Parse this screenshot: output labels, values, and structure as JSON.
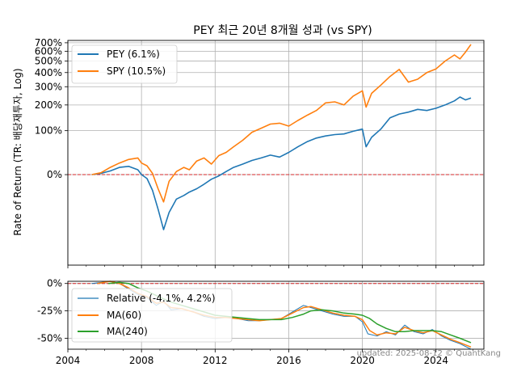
{
  "chart_data": [
    {
      "type": "line",
      "title": "PEY 최근 20년 8개월 성과 (vs SPY)",
      "ylabel": "Rate of Return (TR: 배당재투자, Log)",
      "yscale": "log(1+r)",
      "ylim": [
        -0.76,
        7.3
      ],
      "xlim": [
        2004.0,
        2026.6
      ],
      "yticks": [
        {
          "value": 0.0,
          "label": "0%"
        },
        {
          "value": 1.0,
          "label": "100%"
        },
        {
          "value": 2.0,
          "label": "200%"
        },
        {
          "value": 3.0,
          "label": "300%"
        },
        {
          "value": 4.0,
          "label": "400%"
        },
        {
          "value": 5.0,
          "label": "500%"
        },
        {
          "value": 6.0,
          "label": "600%"
        },
        {
          "value": 7.0,
          "label": "700%"
        }
      ],
      "grid": true,
      "reference_line": {
        "value": 0.0,
        "color": "#d62728",
        "style": "dashed"
      },
      "legend": {
        "position": "top-left",
        "entries": [
          "PEY (6.1%)",
          "SPY (10.5%)"
        ]
      },
      "series": [
        {
          "name": "PEY",
          "label": "PEY (6.1%)",
          "color": "#1f77b4",
          "x": [
            2005.3,
            2005.8,
            2006.3,
            2006.8,
            2007.3,
            2007.8,
            2008.0,
            2008.3,
            2008.6,
            2008.9,
            2009.2,
            2009.5,
            2009.9,
            2010.3,
            2010.6,
            2011.0,
            2011.4,
            2011.8,
            2012.2,
            2012.6,
            2013.0,
            2013.5,
            2014.0,
            2014.5,
            2015.0,
            2015.5,
            2016.0,
            2016.5,
            2017.0,
            2017.5,
            2018.0,
            2018.5,
            2019.0,
            2019.5,
            2020.0,
            2020.2,
            2020.5,
            2021.0,
            2021.5,
            2022.0,
            2022.5,
            2023.0,
            2023.5,
            2024.0,
            2024.5,
            2025.0,
            2025.3,
            2025.6,
            2025.9
          ],
          "values": [
            0.0,
            0.02,
            0.06,
            0.12,
            0.14,
            0.08,
            0.0,
            -0.06,
            -0.22,
            -0.42,
            -0.58,
            -0.45,
            -0.32,
            -0.28,
            -0.24,
            -0.2,
            -0.14,
            -0.07,
            -0.02,
            0.05,
            0.12,
            0.18,
            0.25,
            0.3,
            0.36,
            0.32,
            0.42,
            0.55,
            0.68,
            0.78,
            0.84,
            0.88,
            0.9,
            0.98,
            1.05,
            0.55,
            0.8,
            1.05,
            1.45,
            1.6,
            1.68,
            1.8,
            1.75,
            1.85,
            2.0,
            2.2,
            2.4,
            2.25,
            2.35
          ]
        },
        {
          "name": "SPY",
          "label": "SPY (10.5%)",
          "color": "#ff7f0e",
          "x": [
            2005.3,
            2005.8,
            2006.3,
            2006.8,
            2007.3,
            2007.8,
            2008.0,
            2008.3,
            2008.6,
            2008.9,
            2009.2,
            2009.5,
            2009.9,
            2010.3,
            2010.6,
            2011.0,
            2011.4,
            2011.8,
            2012.2,
            2012.6,
            2013.0,
            2013.5,
            2014.0,
            2014.5,
            2015.0,
            2015.5,
            2016.0,
            2016.5,
            2017.0,
            2017.5,
            2018.0,
            2018.5,
            2019.0,
            2019.5,
            2020.0,
            2020.2,
            2020.5,
            2021.0,
            2021.5,
            2022.0,
            2022.5,
            2023.0,
            2023.5,
            2024.0,
            2024.5,
            2025.0,
            2025.3,
            2025.6,
            2025.9
          ],
          "values": [
            0.0,
            0.03,
            0.12,
            0.2,
            0.27,
            0.3,
            0.2,
            0.15,
            0.02,
            -0.2,
            -0.35,
            -0.1,
            0.05,
            0.12,
            0.08,
            0.24,
            0.3,
            0.18,
            0.35,
            0.42,
            0.55,
            0.72,
            0.95,
            1.08,
            1.22,
            1.25,
            1.15,
            1.35,
            1.55,
            1.75,
            2.1,
            2.15,
            2.0,
            2.45,
            2.75,
            1.9,
            2.6,
            3.1,
            3.7,
            4.25,
            3.3,
            3.5,
            4.0,
            4.3,
            5.0,
            5.6,
            5.2,
            5.9,
            6.8
          ]
        }
      ]
    },
    {
      "type": "line",
      "ylabel": "",
      "ylim": [
        -0.6,
        0.02
      ],
      "xlim": [
        2004.0,
        2026.6
      ],
      "yticks": [
        {
          "value": 0.0,
          "label": "0%"
        },
        {
          "value": -0.25,
          "label": "-25%"
        },
        {
          "value": -0.5,
          "label": "-50%"
        }
      ],
      "xticks": [
        {
          "value": 2004,
          "label": "2004"
        },
        {
          "value": 2008,
          "label": "2008"
        },
        {
          "value": 2012,
          "label": "2012"
        },
        {
          "value": 2016,
          "label": "2016"
        },
        {
          "value": 2020,
          "label": "2020"
        },
        {
          "value": 2024,
          "label": "2024"
        }
      ],
      "grid": true,
      "reference_line": {
        "value": 0.0,
        "color": "#d62728",
        "style": "dashed"
      },
      "legend": {
        "position": "top-left",
        "entries": [
          "Relative (-4.1%, 4.2%)",
          "MA(60)",
          "MA(240)"
        ]
      },
      "series": [
        {
          "name": "Relative",
          "label": "Relative (-4.1%, 4.2%)",
          "color": "#1f77b4",
          "x": [
            2005.3,
            2005.8,
            2006.3,
            2006.8,
            2007.3,
            2007.8,
            2008.3,
            2008.8,
            2009.2,
            2009.6,
            2010.2,
            2010.8,
            2011.4,
            2012.0,
            2012.6,
            2013.2,
            2013.8,
            2014.4,
            2015.0,
            2015.6,
            2016.2,
            2016.8,
            2017.2,
            2017.8,
            2018.4,
            2019.0,
            2019.6,
            2020.0,
            2020.3,
            2020.8,
            2021.3,
            2021.8,
            2022.3,
            2022.8,
            2023.3,
            2023.8,
            2024.3,
            2024.8,
            2025.3,
            2025.9
          ],
          "values": [
            0.0,
            0.01,
            0.02,
            0.0,
            -0.05,
            -0.1,
            -0.13,
            -0.2,
            -0.16,
            -0.24,
            -0.23,
            -0.26,
            -0.3,
            -0.32,
            -0.31,
            -0.32,
            -0.34,
            -0.34,
            -0.33,
            -0.32,
            -0.26,
            -0.2,
            -0.22,
            -0.25,
            -0.28,
            -0.3,
            -0.3,
            -0.35,
            -0.46,
            -0.48,
            -0.44,
            -0.47,
            -0.38,
            -0.44,
            -0.46,
            -0.42,
            -0.48,
            -0.52,
            -0.55,
            -0.6
          ]
        },
        {
          "name": "MA(60)",
          "label": "MA(60)",
          "color": "#ff7f0e",
          "x": [
            2005.6,
            2006.3,
            2006.8,
            2007.3,
            2007.8,
            2008.3,
            2008.8,
            2009.2,
            2009.6,
            2010.2,
            2010.8,
            2011.4,
            2012.0,
            2012.6,
            2013.2,
            2013.8,
            2014.4,
            2015.0,
            2015.6,
            2016.2,
            2016.8,
            2017.2,
            2017.8,
            2018.4,
            2019.0,
            2019.6,
            2020.0,
            2020.4,
            2020.8,
            2021.3,
            2021.8,
            2022.3,
            2022.8,
            2023.3,
            2023.8,
            2024.3,
            2024.8,
            2025.3,
            2025.9
          ],
          "values": [
            0.0,
            0.02,
            0.0,
            -0.04,
            -0.09,
            -0.12,
            -0.18,
            -0.17,
            -0.22,
            -0.23,
            -0.26,
            -0.29,
            -0.31,
            -0.31,
            -0.32,
            -0.33,
            -0.34,
            -0.33,
            -0.32,
            -0.27,
            -0.22,
            -0.21,
            -0.24,
            -0.27,
            -0.29,
            -0.3,
            -0.33,
            -0.43,
            -0.47,
            -0.45,
            -0.46,
            -0.4,
            -0.43,
            -0.45,
            -0.43,
            -0.47,
            -0.51,
            -0.54,
            -0.58
          ]
        },
        {
          "name": "MA(240)",
          "label": "MA(240)",
          "color": "#2ca02c",
          "x": [
            2006.2,
            2006.8,
            2007.3,
            2007.8,
            2008.3,
            2008.8,
            2009.2,
            2009.6,
            2010.2,
            2010.8,
            2011.4,
            2012.0,
            2012.6,
            2013.2,
            2013.8,
            2014.4,
            2015.0,
            2015.6,
            2016.2,
            2016.8,
            2017.2,
            2017.8,
            2018.4,
            2019.0,
            2019.6,
            2020.0,
            2020.4,
            2020.8,
            2021.3,
            2021.8,
            2022.3,
            2022.8,
            2023.3,
            2023.8,
            2024.3,
            2024.8,
            2025.3,
            2025.9
          ],
          "values": [
            0.0,
            0.01,
            0.0,
            -0.04,
            -0.07,
            -0.11,
            -0.14,
            -0.17,
            -0.2,
            -0.23,
            -0.26,
            -0.29,
            -0.3,
            -0.31,
            -0.32,
            -0.33,
            -0.33,
            -0.33,
            -0.31,
            -0.28,
            -0.25,
            -0.24,
            -0.25,
            -0.27,
            -0.28,
            -0.29,
            -0.32,
            -0.37,
            -0.41,
            -0.44,
            -0.44,
            -0.43,
            -0.43,
            -0.43,
            -0.44,
            -0.47,
            -0.5,
            -0.54
          ]
        }
      ]
    }
  ],
  "footer": {
    "watermark": "updated: 2025-08-12 © QuantKang"
  }
}
